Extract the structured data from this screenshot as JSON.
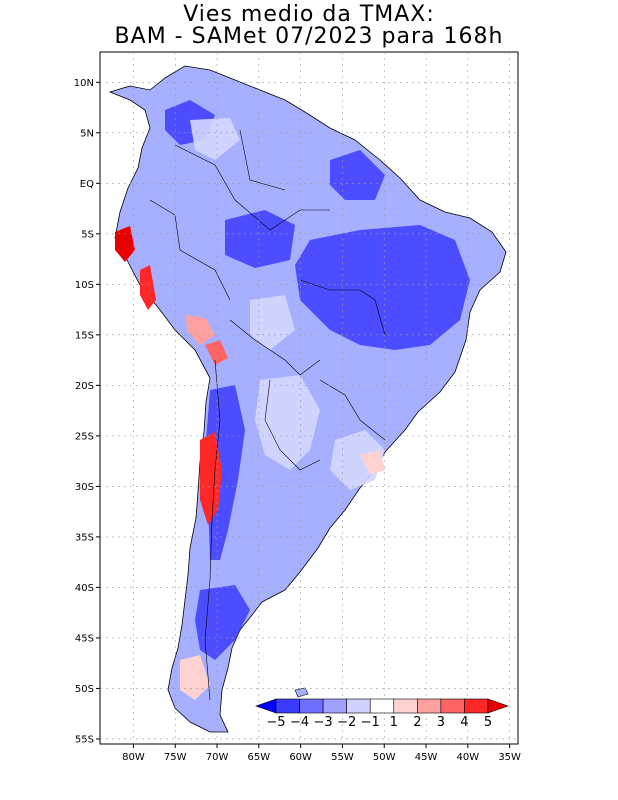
{
  "title": {
    "line1": "Vies medio da TMAX:",
    "line2": "BAM - SAMet 07/2023  para 168h"
  },
  "map": {
    "lat_labels": [
      "10N",
      "5N",
      "EQ",
      "5S",
      "10S",
      "15S",
      "20S",
      "25S",
      "30S",
      "35S",
      "40S",
      "45S",
      "50S",
      "55S"
    ],
    "lat_values": [
      10,
      5,
      0,
      -5,
      -10,
      -15,
      -20,
      -25,
      -30,
      -35,
      -40,
      -45,
      -50,
      -55
    ],
    "lon_labels": [
      "80W",
      "75W",
      "70W",
      "65W",
      "60W",
      "55W",
      "50W",
      "45W",
      "40W",
      "35W"
    ],
    "lon_values": [
      -80,
      -75,
      -70,
      -65,
      -60,
      -55,
      -50,
      -45,
      -40,
      -35
    ],
    "lat_range": [
      -55.5,
      13
    ],
    "lon_range": [
      -84,
      -34
    ],
    "ocean_color": "#ffffff",
    "land_base_color": "#aab4ff",
    "coast_color": "#000000",
    "grid_color": "#999999"
  },
  "colorbar": {
    "labels": [
      "-5",
      "-4",
      "-3",
      "-2",
      "-1",
      "1",
      "2",
      "3",
      "4",
      "5"
    ],
    "colors": [
      "#0000ff",
      "#3c3cff",
      "#6e6eff",
      "#a0a0ff",
      "#d2d2ff",
      "#ffffff",
      "#ffd2d2",
      "#ffa0a0",
      "#ff6464",
      "#ff2828",
      "#e60000"
    ]
  }
}
